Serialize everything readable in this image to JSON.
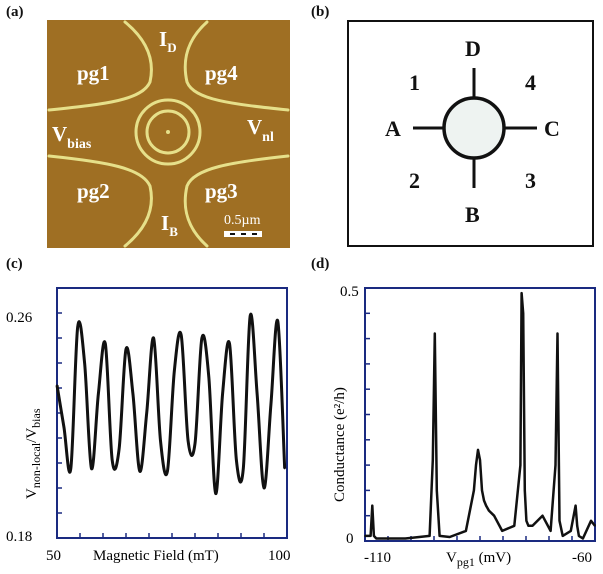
{
  "panels": {
    "a": {
      "label": "(a)",
      "gates": [
        "pg1",
        "pg4",
        "pg2",
        "pg3"
      ],
      "contacts": {
        "top": {
          "main": "I",
          "sub": "D"
        },
        "bottom": {
          "main": "I",
          "sub": "B"
        },
        "left": {
          "main": "V",
          "sub": "bias"
        },
        "right": {
          "main": "V",
          "sub": "nl"
        }
      },
      "scale_bar": "0.5µm",
      "colors": {
        "background": "#9a6a1f",
        "lines": "#e6e08a"
      }
    },
    "b": {
      "label": "(b)",
      "leads": [
        "A",
        "B",
        "C",
        "D"
      ],
      "quadrants": [
        "1",
        "2",
        "3",
        "4"
      ]
    },
    "c": {
      "label": "(c)",
      "ylabel": {
        "main": "V",
        "sub1": "non-local",
        "sep": "/V",
        "sub2": "bias"
      },
      "xlabel": "Magnetic Field (mT)",
      "xticks": [
        "50",
        "100"
      ],
      "yticks": [
        "0.26",
        "0.18"
      ]
    },
    "d": {
      "label": "(d)",
      "ylabel": "Conductance (e²/h)",
      "xlabel": {
        "main": "V",
        "sub": "pg1",
        "unit": " (mV)"
      },
      "xticks": [
        "-110",
        "-60"
      ],
      "yticks": [
        "0.5",
        "0"
      ]
    }
  },
  "chart_data": [
    {
      "type": "line",
      "panel": "c",
      "xlabel": "Magnetic Field (mT)",
      "ylabel": "Vnon-local/Vbias",
      "xlim": [
        50,
        100
      ],
      "ylim": [
        0.18,
        0.27
      ],
      "series": [
        {
          "x": [
            50,
            51.5,
            53,
            54.5,
            56,
            57.5,
            59,
            60.5,
            62,
            63.5,
            65,
            66.5,
            68,
            69.5,
            71,
            72.5,
            74,
            75.5,
            77,
            78.5,
            80,
            81.5,
            83,
            84.5,
            86,
            87.5,
            89,
            90.5,
            92,
            93.5,
            95,
            96.5,
            98,
            99.5
          ],
          "values": [
            0.235,
            0.22,
            0.205,
            0.256,
            0.243,
            0.205,
            0.232,
            0.25,
            0.208,
            0.212,
            0.248,
            0.232,
            0.204,
            0.225,
            0.252,
            0.215,
            0.204,
            0.24,
            0.253,
            0.215,
            0.214,
            0.252,
            0.238,
            0.196,
            0.232,
            0.25,
            0.208,
            0.205,
            0.26,
            0.232,
            0.198,
            0.228,
            0.258,
            0.205
          ]
        }
      ]
    },
    {
      "type": "line",
      "panel": "d",
      "xlabel": "Vpg1 (mV)",
      "ylabel": "Conductance (e²/h)",
      "xlim": [
        -115,
        -58
      ],
      "ylim": [
        0,
        0.5
      ],
      "series": [
        {
          "x": [
            -115,
            -113.6,
            -113.2,
            -112.8,
            -112.2,
            -110,
            -105,
            -99,
            -98.2,
            -97.7,
            -97.2,
            -96.5,
            -94,
            -90,
            -88,
            -87.5,
            -87,
            -86.5,
            -86,
            -85.5,
            -85,
            -84.3,
            -83,
            -81,
            -78,
            -76.5,
            -76.2,
            -75.8,
            -75.4,
            -75,
            -74.5,
            -73.5,
            -71,
            -69,
            -67.8,
            -67.3,
            -66.8,
            -66,
            -64,
            -62.8,
            -62.4,
            -62,
            -61,
            -59,
            -58
          ],
          "values": [
            0.01,
            0.01,
            0.07,
            0.01,
            0.005,
            0.005,
            0.005,
            0.01,
            0.16,
            0.41,
            0.1,
            0.01,
            0.008,
            0.02,
            0.1,
            0.15,
            0.18,
            0.16,
            0.1,
            0.08,
            0.07,
            0.06,
            0.05,
            0.02,
            0.03,
            0.15,
            0.49,
            0.45,
            0.1,
            0.04,
            0.03,
            0.03,
            0.05,
            0.02,
            0.15,
            0.41,
            0.04,
            0.01,
            0.02,
            0.07,
            0.03,
            0.01,
            0.005,
            0.04,
            0.03
          ]
        }
      ]
    }
  ]
}
